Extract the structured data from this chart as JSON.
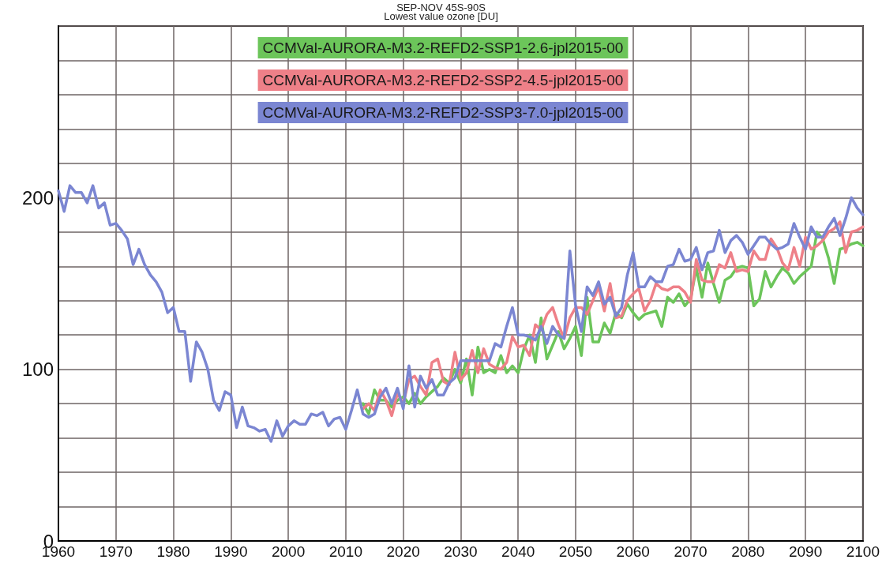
{
  "chart_data": {
    "type": "line",
    "title": "SEP-NOV 45S-90S",
    "subtitle": "Lowest value ozone [DU]",
    "x": [
      1960,
      1961,
      1962,
      1963,
      1964,
      1965,
      1966,
      1967,
      1968,
      1969,
      1970,
      1971,
      1972,
      1973,
      1974,
      1975,
      1976,
      1977,
      1978,
      1979,
      1980,
      1981,
      1982,
      1983,
      1984,
      1985,
      1986,
      1987,
      1988,
      1989,
      1990,
      1991,
      1992,
      1993,
      1994,
      1995,
      1996,
      1997,
      1998,
      1999,
      2000,
      2001,
      2002,
      2003,
      2004,
      2005,
      2006,
      2007,
      2008,
      2009,
      2010,
      2011,
      2012,
      2013,
      2014,
      2015,
      2016,
      2017,
      2018,
      2019,
      2020,
      2021,
      2022,
      2023,
      2024,
      2025,
      2026,
      2027,
      2028,
      2029,
      2030,
      2031,
      2032,
      2033,
      2034,
      2035,
      2036,
      2037,
      2038,
      2039,
      2040,
      2041,
      2042,
      2043,
      2044,
      2045,
      2046,
      2047,
      2048,
      2049,
      2050,
      2051,
      2052,
      2053,
      2054,
      2055,
      2056,
      2057,
      2058,
      2059,
      2060,
      2061,
      2062,
      2063,
      2064,
      2065,
      2066,
      2067,
      2068,
      2069,
      2070,
      2071,
      2072,
      2073,
      2074,
      2075,
      2076,
      2077,
      2078,
      2079,
      2080,
      2081,
      2082,
      2083,
      2084,
      2085,
      2086,
      2087,
      2088,
      2089,
      2090,
      2091,
      2092,
      2093,
      2094,
      2095,
      2096,
      2097,
      2098,
      2099,
      2100
    ],
    "series": [
      {
        "name": "CCMVal-AURORA-M3.2-REFD2-SSP1-2.6-jpl2015-00",
        "color": "#6cc55a",
        "values": [
          null,
          null,
          null,
          null,
          null,
          null,
          null,
          null,
          null,
          null,
          null,
          null,
          null,
          null,
          null,
          null,
          null,
          null,
          null,
          null,
          null,
          null,
          null,
          null,
          null,
          null,
          null,
          null,
          null,
          null,
          null,
          null,
          null,
          null,
          null,
          null,
          null,
          null,
          null,
          null,
          null,
          null,
          null,
          null,
          null,
          null,
          null,
          null,
          null,
          null,
          null,
          null,
          null,
          80,
          74,
          88,
          82,
          82,
          78,
          82,
          84,
          80,
          86,
          80,
          84,
          87,
          90,
          95,
          92,
          100,
          92,
          106,
          85,
          113,
          98,
          100,
          98,
          108,
          98,
          102,
          98,
          112,
          120,
          104,
          130,
          106,
          114,
          122,
          112,
          118,
          125,
          108,
          142,
          116,
          116,
          127,
          121,
          133,
          130,
          138,
          133,
          129,
          132,
          133,
          134,
          125,
          142,
          139,
          144,
          137,
          141,
          159,
          142,
          162,
          150,
          139,
          152,
          154,
          159,
          160,
          159,
          137,
          141,
          157,
          148,
          154,
          159,
          156,
          150,
          154,
          157,
          160,
          180,
          176,
          165,
          150,
          170,
          171,
          173,
          174,
          172
        ]
      },
      {
        "name": "CCMVal-AURORA-M3.2-REFD2-SSP2-4.5-jpl2015-00",
        "color": "#ee8088",
        "values": [
          null,
          null,
          null,
          null,
          null,
          null,
          null,
          null,
          null,
          null,
          null,
          null,
          null,
          null,
          null,
          null,
          null,
          null,
          null,
          null,
          null,
          null,
          null,
          null,
          null,
          null,
          null,
          null,
          null,
          null,
          null,
          null,
          null,
          null,
          null,
          null,
          null,
          null,
          null,
          null,
          null,
          null,
          null,
          null,
          null,
          null,
          null,
          null,
          null,
          null,
          null,
          null,
          null,
          77,
          80,
          76,
          88,
          82,
          73,
          86,
          80,
          94,
          96,
          90,
          85,
          104,
          106,
          93,
          91,
          110,
          94,
          98,
          111,
          98,
          112,
          103,
          101,
          100,
          104,
          119,
          113,
          114,
          108,
          126,
          123,
          132,
          136,
          126,
          118,
          130,
          136,
          136,
          132,
          140,
          148,
          134,
          150,
          130,
          131,
          140,
          144,
          147,
          134,
          140,
          150,
          147,
          146,
          148,
          148,
          145,
          139,
          164,
          152,
          151,
          151,
          161,
          159,
          168,
          157,
          158,
          157,
          169,
          164,
          164,
          176,
          171,
          162,
          158,
          171,
          160,
          177,
          170,
          172,
          175,
          180,
          182,
          186,
          168,
          180,
          181,
          183
        ]
      },
      {
        "name": "CCMVal-AURORA-M3.2-REFD2-SSP3-7.0-jpl2015-00",
        "color": "#7b86d2",
        "values": [
          204,
          192,
          207,
          203,
          203,
          197,
          207,
          194,
          197,
          184,
          185,
          181,
          176,
          161,
          170,
          161,
          155,
          151,
          145,
          133,
          136,
          122,
          122,
          93,
          116,
          110,
          100,
          82,
          76,
          87,
          85,
          66,
          78,
          67,
          66,
          64,
          65,
          58,
          70,
          61,
          67,
          70,
          68,
          68,
          74,
          73,
          75,
          67,
          71,
          72,
          65,
          76,
          88,
          74,
          72,
          74,
          84,
          89,
          80,
          89,
          77,
          102,
          78,
          96,
          89,
          94,
          85,
          85,
          92,
          95,
          105,
          105,
          105,
          105,
          105,
          105,
          115,
          113,
          125,
          136,
          120,
          120,
          119,
          117,
          125,
          115,
          125,
          120,
          118,
          169,
          137,
          122,
          148,
          143,
          151,
          138,
          142,
          131,
          136,
          155,
          168,
          148,
          148,
          154,
          151,
          151,
          160,
          161,
          170,
          163,
          164,
          171,
          158,
          168,
          169,
          181,
          168,
          175,
          178,
          174,
          167,
          172,
          177,
          177,
          173,
          170,
          171,
          173,
          185,
          177,
          170,
          183,
          177,
          177,
          183,
          188,
          178,
          188,
          200,
          194,
          190
        ]
      }
    ],
    "xlim": [
      1960,
      2100
    ],
    "xticks": [
      1960,
      1970,
      1980,
      1990,
      2000,
      2010,
      2020,
      2030,
      2040,
      2050,
      2060,
      2070,
      2080,
      2090,
      2100
    ],
    "ylim": [
      0,
      300
    ],
    "yticks": [
      0,
      {
        "value": 20,
        "label": null
      },
      {
        "value": 40,
        "label": null
      },
      {
        "value": 60,
        "label": null
      },
      {
        "value": 80,
        "label": null
      },
      100,
      {
        "value": 120,
        "label": null
      },
      {
        "value": 140,
        "label": null
      },
      {
        "value": 160,
        "label": null
      },
      {
        "value": 180,
        "label": null
      },
      200,
      {
        "value": 220,
        "label": null
      },
      {
        "value": 240,
        "label": null
      },
      {
        "value": 260,
        "label": null
      },
      {
        "value": 280,
        "label": null
      },
      {
        "value": 300,
        "label": null
      }
    ],
    "grid": true,
    "legend": "top",
    "marker": "none"
  }
}
